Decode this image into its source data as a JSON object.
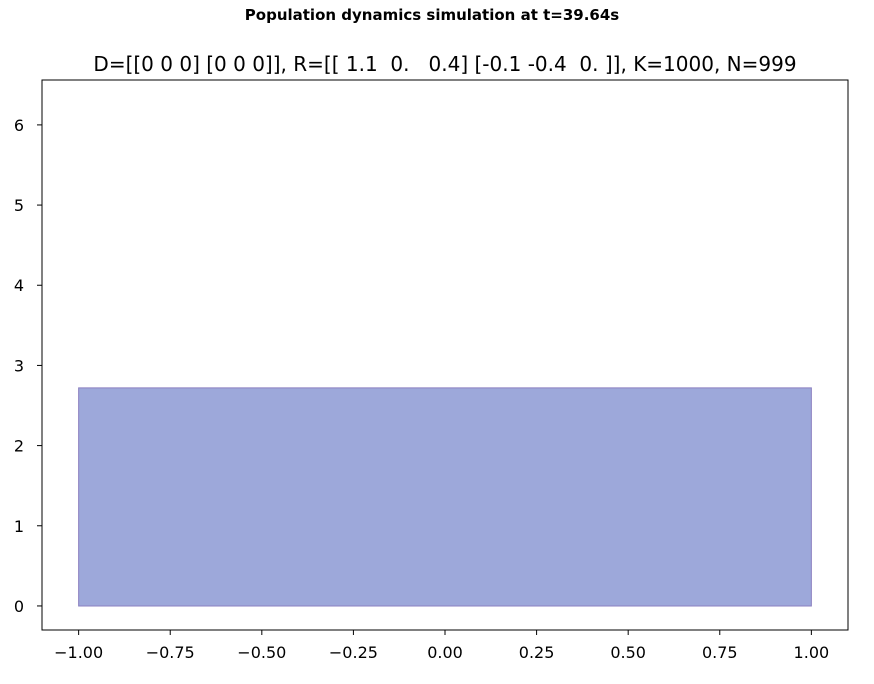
{
  "figure": {
    "suptitle": "Population dynamics simulation at t=39.64s"
  },
  "chart_data": {
    "type": "area",
    "title": "D=[[0 0 0] [0 0 0]], R=[[ 1.1  0.   0.4] [-0.1 -0.4  0. ]], K=1000, N=999",
    "xlabel": "",
    "ylabel": "",
    "x": [
      -1.0,
      1.0
    ],
    "series": [
      {
        "values": [
          2.72,
          2.72
        ]
      }
    ],
    "baseline": 0,
    "xlim": [
      -1.1,
      1.1
    ],
    "ylim": [
      -0.3,
      6.56
    ],
    "xticks": [
      -1.0,
      -0.75,
      -0.5,
      -0.25,
      0.0,
      0.25,
      0.5,
      0.75,
      1.0
    ],
    "xtick_labels": [
      "−1.00",
      "−0.75",
      "−0.50",
      "−0.25",
      "0.00",
      "0.25",
      "0.50",
      "0.75",
      "1.00"
    ],
    "yticks": [
      0,
      1,
      2,
      3,
      4,
      5,
      6
    ],
    "ytick_labels": [
      "0",
      "1",
      "2",
      "3",
      "4",
      "5",
      "6"
    ],
    "grid": false,
    "colors": {
      "fill": "#9da8da",
      "edge": "#8a7fc0",
      "axes": "#000000"
    }
  }
}
